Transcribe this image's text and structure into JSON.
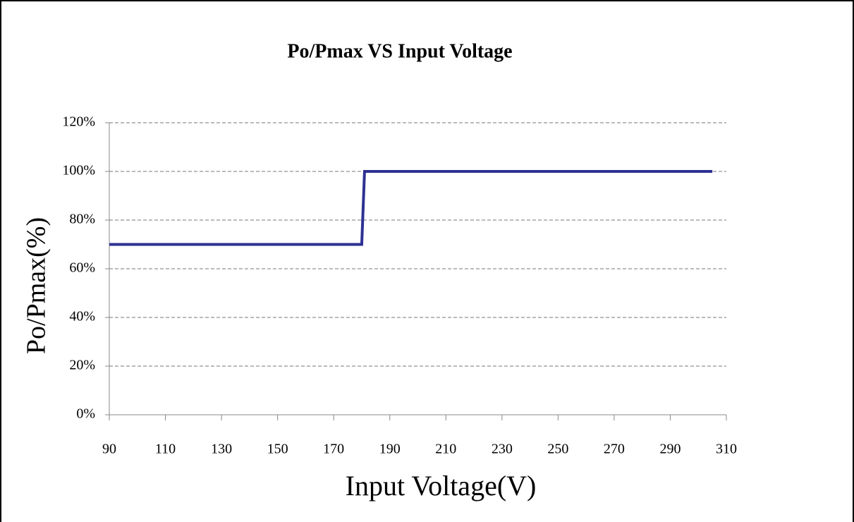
{
  "chart_data": {
    "type": "line",
    "title": "Po/Pmax VS Input Voltage",
    "x_label": "Input Voltage(V)",
    "y_label": "Po/Pmax(%)",
    "series": [
      {
        "name": "Po/Pmax",
        "color": "#2e3192",
        "x": [
          90,
          180,
          181,
          305
        ],
        "values": [
          70,
          70,
          100,
          100
        ]
      }
    ],
    "xlim": [
      90,
      310
    ],
    "xticks": [
      90,
      110,
      130,
      150,
      170,
      190,
      210,
      230,
      250,
      270,
      290,
      310
    ],
    "ylim": [
      0,
      120
    ],
    "yticks": [
      {
        "value": 0,
        "label": "0%"
      },
      {
        "value": 20,
        "label": "20%"
      },
      {
        "value": 40,
        "label": "40%"
      },
      {
        "value": 60,
        "label": "60%"
      },
      {
        "value": 80,
        "label": "80%"
      },
      {
        "value": 100,
        "label": "100%"
      },
      {
        "value": 120,
        "label": "120%"
      }
    ],
    "grid": true
  }
}
